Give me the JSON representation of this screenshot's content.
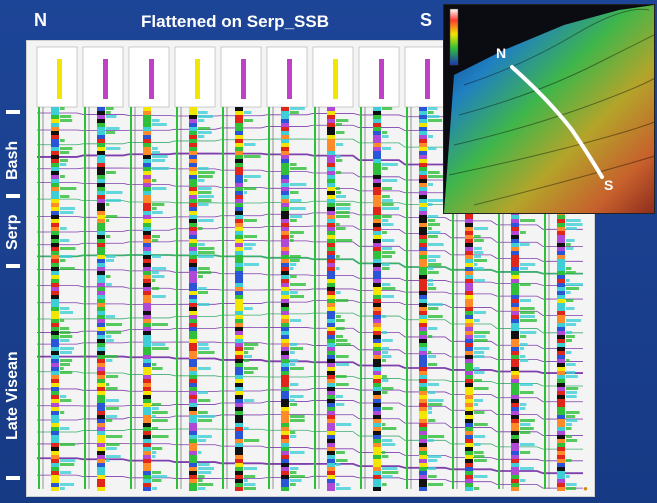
{
  "title": "Flattened on Serp_SSB",
  "direction_left": "N",
  "direction_right": "S",
  "zones": [
    "Bash",
    "Serp",
    "Late Visean"
  ],
  "map": {
    "north_label": "N",
    "south_label": "S"
  },
  "colors": {
    "background": "#1a3f8f",
    "panel": "#f4f4f4",
    "correlation_purple": "#6a1fa0",
    "correlation_green": "#1fa05a",
    "log_green": "#2fbf3a",
    "log_red": "#e0251b",
    "log_yellow": "#f2e600",
    "log_cyan": "#3ecfd6",
    "log_black": "#111111"
  }
}
